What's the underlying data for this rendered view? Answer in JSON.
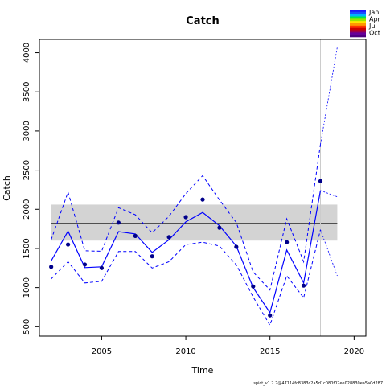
{
  "chart_data": {
    "type": "line",
    "title": "Catch",
    "xlabel": "Time",
    "ylabel": "Catch",
    "xlim": [
      2001.3,
      2020.7
    ],
    "ylim": [
      380,
      4170
    ],
    "xticks": [
      2005,
      2010,
      2015,
      2020
    ],
    "yticks": [
      500,
      1000,
      1500,
      2000,
      2500,
      3000,
      3500,
      4000
    ],
    "observed": {
      "x": [
        2002,
        2003,
        2004,
        2005,
        2006,
        2007,
        2008,
        2009,
        2010,
        2011,
        2012,
        2013,
        2014,
        2015,
        2016,
        2017,
        2018
      ],
      "y": [
        1265,
        1550,
        1295,
        1250,
        1830,
        1660,
        1400,
        1645,
        1900,
        2125,
        1765,
        1520,
        1015,
        645,
        1580,
        1025,
        2360
      ]
    },
    "fitted": {
      "x": [
        2002,
        2003,
        2004,
        2005,
        2006,
        2007,
        2008,
        2009,
        2010,
        2011,
        2012,
        2013,
        2014,
        2015,
        2016,
        2017,
        2018
      ],
      "y": [
        1340,
        1720,
        1255,
        1265,
        1715,
        1685,
        1450,
        1610,
        1840,
        1960,
        1790,
        1530,
        1000,
        680,
        1480,
        1060,
        2240
      ]
    },
    "upper_ci": [
      1610,
      2220,
      1470,
      1465,
      2020,
      1930,
      1700,
      1910,
      2200,
      2430,
      2120,
      1830,
      1200,
      970,
      1880,
      1330,
      2830
    ],
    "lower_ci": [
      1110,
      1330,
      1060,
      1080,
      1460,
      1460,
      1250,
      1330,
      1550,
      1580,
      1530,
      1290,
      880,
      520,
      1150,
      870,
      1740
    ],
    "forecast": {
      "x": [
        2018,
        2019
      ],
      "y": [
        2240,
        2160
      ],
      "upper": [
        2830,
        4070
      ],
      "lower": [
        1740,
        1150
      ]
    },
    "mean_line": 1820,
    "band": [
      1600,
      2060
    ],
    "vline_x": 2018,
    "legend": {
      "placement": "top-right",
      "entries": [
        "Jan",
        "Apr",
        "Jul",
        "Oct"
      ],
      "colors": [
        "#1a1aff",
        "#1a4dff",
        "#00b3ff",
        "#00e64d",
        "#99e600",
        "#ffe600",
        "#ff9900",
        "#ff3300",
        "#cc0000",
        "#99004d",
        "#660099",
        "#4d0080"
      ]
    },
    "footer": "spict_v1.2.7@47114fc8383c2a5d1c080f02ee028830ea5a0d287"
  },
  "colors": {
    "line": "#0000ff",
    "points": "#00008b",
    "band": "#d3d3d3",
    "vline": "#cccccc"
  }
}
